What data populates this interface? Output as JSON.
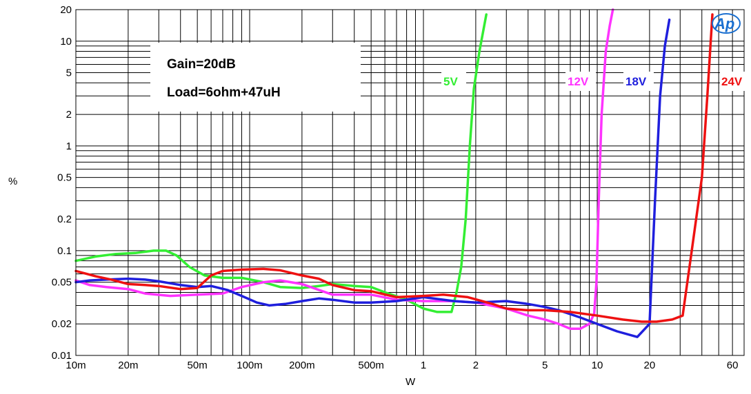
{
  "chart_data": {
    "type": "line",
    "xlabel": "W",
    "ylabel": "%",
    "x_scale": "log",
    "y_scale": "log",
    "xlim": [
      0.01,
      70
    ],
    "ylim": [
      0.01,
      20
    ],
    "grid": true,
    "x_ticks": [
      {
        "value": 0.01,
        "label": "10m"
      },
      {
        "value": 0.02,
        "label": "20m"
      },
      {
        "value": 0.05,
        "label": "50m"
      },
      {
        "value": 0.1,
        "label": "100m"
      },
      {
        "value": 0.2,
        "label": "200m"
      },
      {
        "value": 0.5,
        "label": "500m"
      },
      {
        "value": 1,
        "label": "1"
      },
      {
        "value": 2,
        "label": "2"
      },
      {
        "value": 5,
        "label": "5"
      },
      {
        "value": 10,
        "label": "10"
      },
      {
        "value": 20,
        "label": "20"
      },
      {
        "value": 60,
        "label": "60"
      }
    ],
    "y_ticks": [
      {
        "value": 0.01,
        "label": "0.01"
      },
      {
        "value": 0.02,
        "label": "0.02"
      },
      {
        "value": 0.05,
        "label": "0.05"
      },
      {
        "value": 0.1,
        "label": "0.1"
      },
      {
        "value": 0.2,
        "label": "0.2"
      },
      {
        "value": 0.5,
        "label": "0.5"
      },
      {
        "value": 1,
        "label": "1"
      },
      {
        "value": 2,
        "label": "2"
      },
      {
        "value": 5,
        "label": "5"
      },
      {
        "value": 10,
        "label": "10"
      },
      {
        "value": 20,
        "label": "20"
      }
    ],
    "annotations": [
      "Gain=20dB",
      "Load=6ohm+47uH"
    ],
    "series": [
      {
        "name": "5V",
        "color": "#33ee33",
        "points": [
          [
            0.01,
            0.08
          ],
          [
            0.013,
            0.088
          ],
          [
            0.017,
            0.093
          ],
          [
            0.022,
            0.095
          ],
          [
            0.028,
            0.1
          ],
          [
            0.033,
            0.1
          ],
          [
            0.038,
            0.09
          ],
          [
            0.045,
            0.07
          ],
          [
            0.055,
            0.058
          ],
          [
            0.07,
            0.055
          ],
          [
            0.09,
            0.055
          ],
          [
            0.12,
            0.05
          ],
          [
            0.15,
            0.045
          ],
          [
            0.2,
            0.044
          ],
          [
            0.25,
            0.046
          ],
          [
            0.3,
            0.048
          ],
          [
            0.4,
            0.046
          ],
          [
            0.5,
            0.045
          ],
          [
            0.6,
            0.04
          ],
          [
            0.8,
            0.034
          ],
          [
            1.0,
            0.028
          ],
          [
            1.2,
            0.026
          ],
          [
            1.45,
            0.026
          ],
          [
            1.55,
            0.04
          ],
          [
            1.65,
            0.07
          ],
          [
            1.75,
            0.2
          ],
          [
            1.85,
            1.0
          ],
          [
            1.95,
            3.5
          ],
          [
            2.1,
            8.0
          ],
          [
            2.3,
            18.0
          ]
        ]
      },
      {
        "name": "12V",
        "color": "#ff33ff",
        "points": [
          [
            0.01,
            0.052
          ],
          [
            0.012,
            0.047
          ],
          [
            0.015,
            0.045
          ],
          [
            0.02,
            0.043
          ],
          [
            0.025,
            0.039
          ],
          [
            0.035,
            0.037
          ],
          [
            0.05,
            0.038
          ],
          [
            0.07,
            0.039
          ],
          [
            0.09,
            0.045
          ],
          [
            0.12,
            0.05
          ],
          [
            0.15,
            0.052
          ],
          [
            0.2,
            0.048
          ],
          [
            0.3,
            0.038
          ],
          [
            0.5,
            0.038
          ],
          [
            0.7,
            0.034
          ],
          [
            1.0,
            0.033
          ],
          [
            1.5,
            0.033
          ],
          [
            2.0,
            0.032
          ],
          [
            3.0,
            0.028
          ],
          [
            4.0,
            0.024
          ],
          [
            5.0,
            0.022
          ],
          [
            6.0,
            0.02
          ],
          [
            7.0,
            0.018
          ],
          [
            8.0,
            0.018
          ],
          [
            9.0,
            0.02
          ],
          [
            9.6,
            0.025
          ],
          [
            9.9,
            0.05
          ],
          [
            10.2,
            0.3
          ],
          [
            10.6,
            2.0
          ],
          [
            11.2,
            8.0
          ],
          [
            11.8,
            14.0
          ],
          [
            12.3,
            20.0
          ]
        ]
      },
      {
        "name": "18V",
        "color": "#1f1fdd",
        "points": [
          [
            0.01,
            0.05
          ],
          [
            0.012,
            0.052
          ],
          [
            0.015,
            0.053
          ],
          [
            0.02,
            0.054
          ],
          [
            0.025,
            0.053
          ],
          [
            0.03,
            0.051
          ],
          [
            0.04,
            0.047
          ],
          [
            0.05,
            0.045
          ],
          [
            0.06,
            0.046
          ],
          [
            0.075,
            0.042
          ],
          [
            0.09,
            0.037
          ],
          [
            0.11,
            0.032
          ],
          [
            0.13,
            0.03
          ],
          [
            0.16,
            0.031
          ],
          [
            0.2,
            0.033
          ],
          [
            0.25,
            0.035
          ],
          [
            0.3,
            0.034
          ],
          [
            0.4,
            0.032
          ],
          [
            0.5,
            0.032
          ],
          [
            0.7,
            0.033
          ],
          [
            1.0,
            0.036
          ],
          [
            1.5,
            0.033
          ],
          [
            2.0,
            0.032
          ],
          [
            3.0,
            0.033
          ],
          [
            4.0,
            0.031
          ],
          [
            5.0,
            0.029
          ],
          [
            6.0,
            0.027
          ],
          [
            8.0,
            0.023
          ],
          [
            10.0,
            0.02
          ],
          [
            13.0,
            0.017
          ],
          [
            17.0,
            0.015
          ],
          [
            20.0,
            0.02
          ],
          [
            21.5,
            0.3
          ],
          [
            23.0,
            3.0
          ],
          [
            24.5,
            9.0
          ],
          [
            26.0,
            16.0
          ]
        ]
      },
      {
        "name": "24V",
        "color": "#ee1111",
        "points": [
          [
            0.01,
            0.064
          ],
          [
            0.013,
            0.057
          ],
          [
            0.016,
            0.053
          ],
          [
            0.02,
            0.048
          ],
          [
            0.025,
            0.047
          ],
          [
            0.03,
            0.046
          ],
          [
            0.04,
            0.043
          ],
          [
            0.05,
            0.044
          ],
          [
            0.06,
            0.058
          ],
          [
            0.07,
            0.064
          ],
          [
            0.09,
            0.066
          ],
          [
            0.12,
            0.067
          ],
          [
            0.15,
            0.065
          ],
          [
            0.2,
            0.058
          ],
          [
            0.25,
            0.054
          ],
          [
            0.3,
            0.047
          ],
          [
            0.4,
            0.042
          ],
          [
            0.5,
            0.041
          ],
          [
            0.7,
            0.036
          ],
          [
            1.0,
            0.037
          ],
          [
            1.3,
            0.038
          ],
          [
            1.8,
            0.036
          ],
          [
            2.5,
            0.031
          ],
          [
            3.0,
            0.028
          ],
          [
            4.0,
            0.027
          ],
          [
            5.0,
            0.027
          ],
          [
            7.0,
            0.026
          ],
          [
            10.0,
            0.024
          ],
          [
            14.0,
            0.022
          ],
          [
            18.0,
            0.021
          ],
          [
            22.0,
            0.021
          ],
          [
            27.0,
            0.022
          ],
          [
            31.0,
            0.024
          ],
          [
            35.0,
            0.1
          ],
          [
            40.0,
            0.5
          ],
          [
            43.0,
            3.0
          ],
          [
            46.0,
            18.0
          ]
        ]
      }
    ]
  }
}
